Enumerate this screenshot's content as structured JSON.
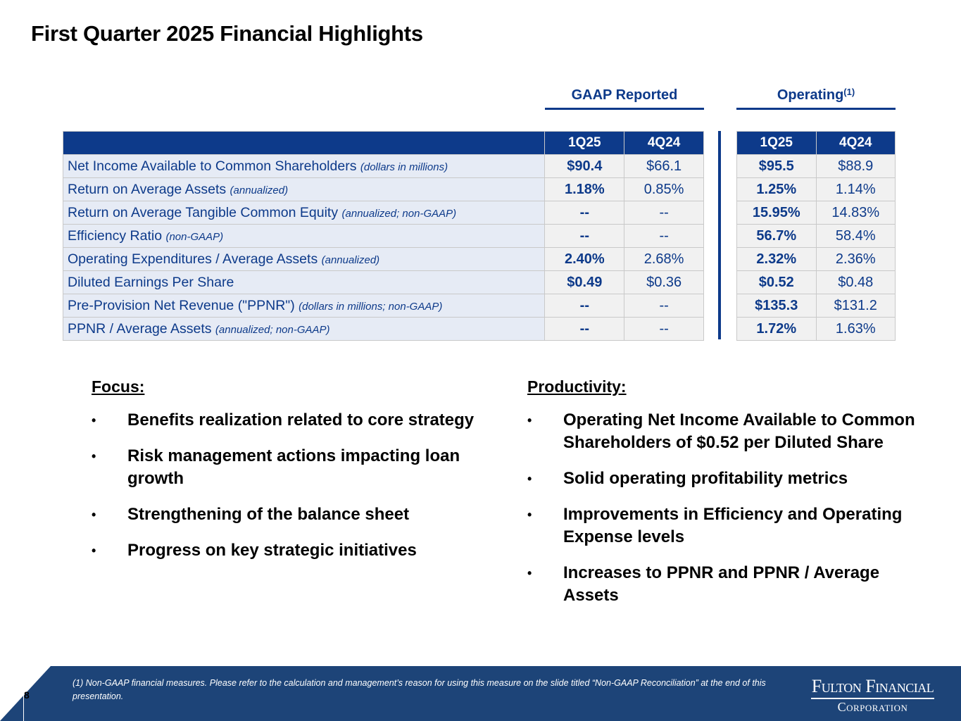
{
  "title": "First Quarter 2025 Financial Highlights",
  "gaap_header": "GAAP Reported",
  "operating_header": "Operating",
  "operating_footnote_ref": "(1)",
  "columns": {
    "c1": "1Q25",
    "c2": "4Q24"
  },
  "rows": [
    {
      "label": "Net Income Available to Common Shareholders",
      "note": "(dollars in millions)",
      "gaap_q1": "$90.4",
      "gaap_q4": "$66.1",
      "op_q1": "$95.5",
      "op_q4": "$88.9"
    },
    {
      "label": "Return on Average Assets",
      "note": "(annualized)",
      "gaap_q1": "1.18%",
      "gaap_q4": "0.85%",
      "op_q1": "1.25%",
      "op_q4": "1.14%"
    },
    {
      "label": "Return on Average Tangible Common Equity",
      "note": "(annualized; non-GAAP)",
      "gaap_q1": "--",
      "gaap_q4": "--",
      "op_q1": "15.95%",
      "op_q4": "14.83%"
    },
    {
      "label": "Efficiency Ratio",
      "note": "(non-GAAP)",
      "gaap_q1": "--",
      "gaap_q4": "--",
      "op_q1": "56.7%",
      "op_q4": "58.4%"
    },
    {
      "label": "Operating Expenditures / Average Assets",
      "note": "(annualized)",
      "gaap_q1": "2.40%",
      "gaap_q4": "2.68%",
      "op_q1": "2.32%",
      "op_q4": "2.36%"
    },
    {
      "label": "Diluted Earnings Per Share",
      "note": "",
      "gaap_q1": "$0.49",
      "gaap_q4": "$0.36",
      "op_q1": "$0.52",
      "op_q4": "$0.48"
    },
    {
      "label": "Pre-Provision Net Revenue (\"PPNR\")",
      "note": "(dollars in millions; non-GAAP)",
      "gaap_q1": "--",
      "gaap_q4": "--",
      "op_q1": "$135.3",
      "op_q4": "$131.2"
    },
    {
      "label": "PPNR / Average Assets",
      "note": "(annualized; non-GAAP)",
      "gaap_q1": "--",
      "gaap_q4": "--",
      "op_q1": "1.72%",
      "op_q4": "1.63%"
    }
  ],
  "focus": {
    "heading": "Focus:",
    "items": [
      "Benefits realization related to core strategy",
      "Risk management actions impacting loan growth",
      "Strengthening of the balance sheet",
      "Progress on key strategic initiatives"
    ]
  },
  "productivity": {
    "heading": "Productivity:",
    "items": [
      "Operating Net Income Available to Common Shareholders of $0.52 per Diluted Share",
      "Solid operating profitability metrics",
      "Improvements in Efficiency and Operating Expense levels",
      "Increases to PPNR and PPNR / Average Assets"
    ]
  },
  "bullet": "•",
  "page_number": "8",
  "footnote": "(1) Non-GAAP financial measures.  Please refer to the calculation and management’s reason for using this measure on the slide titled “Non-GAAP Reconciliation” at the end of this presentation.",
  "logo": {
    "line1": "Fulton Financial",
    "line2": "Corporation"
  },
  "colors": {
    "navy": "#0d3a8a",
    "footer": "#1d4478",
    "label_bg": "#e6ebf5",
    "value_bg": "#f1f1f1"
  }
}
